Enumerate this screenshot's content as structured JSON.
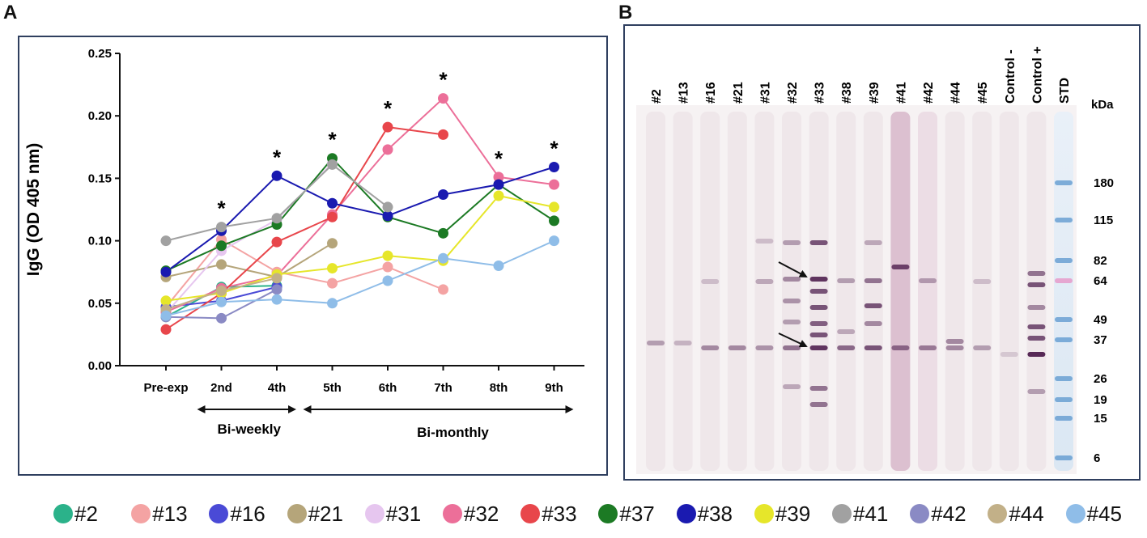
{
  "panels": {
    "a_letter": "A",
    "b_letter": "B"
  },
  "chart_data": [
    {
      "type": "line",
      "ylabel": "IgG (OD 405 nm)",
      "xlabel": "",
      "categories": [
        "Pre-exp",
        "2nd",
        "4th",
        "5th",
        "6th",
        "7th",
        "8th",
        "9th"
      ],
      "yticks": [
        "0.00",
        "0.05",
        "0.10",
        "0.15",
        "0.20",
        "0.25"
      ],
      "ylim": [
        0,
        0.25
      ],
      "significance_marks": [
        {
          "x": "2nd",
          "label": "*"
        },
        {
          "x": "4th",
          "label": "*"
        },
        {
          "x": "5th",
          "label": "*"
        },
        {
          "x": "6th",
          "label": "*"
        },
        {
          "x": "7th",
          "label": "*"
        },
        {
          "x": "8th",
          "label": "*"
        },
        {
          "x": "9th",
          "label": "*"
        }
      ],
      "annotations": {
        "bi_weekly": "Bi-weekly",
        "bi_monthly": "Bi-monthly"
      },
      "series": [
        {
          "name": "#2",
          "color": "#2bb28a",
          "values": [
            0.039,
            0.063,
            0.064,
            null,
            null,
            null,
            null,
            null
          ]
        },
        {
          "name": "#13",
          "color": "#f4a3a3",
          "values": [
            0.047,
            0.101,
            0.075,
            0.066,
            0.079,
            0.061,
            null,
            null
          ]
        },
        {
          "name": "#16",
          "color": "#4a4ad6",
          "values": [
            0.047,
            0.052,
            0.063,
            null,
            null,
            null,
            null,
            null
          ]
        },
        {
          "name": "#21",
          "color": "#b5a57a",
          "values": [
            0.071,
            0.081,
            0.071,
            0.098,
            null,
            null,
            null,
            null
          ]
        },
        {
          "name": "#31",
          "color": "#e6c6ef",
          "values": [
            0.042,
            0.092,
            0.117,
            0.162,
            null,
            null,
            null,
            null
          ]
        },
        {
          "name": "#32",
          "color": "#ec6f99",
          "values": [
            0.043,
            0.062,
            0.072,
            0.121,
            0.173,
            0.214,
            0.151,
            0.145
          ]
        },
        {
          "name": "#33",
          "color": "#e8464b",
          "values": [
            0.029,
            0.058,
            0.099,
            0.119,
            0.191,
            0.185,
            null,
            null
          ]
        },
        {
          "name": "#37",
          "color": "#1c7a24",
          "values": [
            0.076,
            0.096,
            0.113,
            0.166,
            0.119,
            0.106,
            0.145,
            0.116
          ]
        },
        {
          "name": "#38",
          "color": "#1a1ab0",
          "values": [
            0.075,
            0.108,
            0.152,
            0.13,
            0.12,
            0.137,
            0.145,
            0.159
          ]
        },
        {
          "name": "#39",
          "color": "#e6e62a",
          "values": [
            0.052,
            0.058,
            0.073,
            0.078,
            0.088,
            0.084,
            0.136,
            0.127
          ]
        },
        {
          "name": "#41",
          "color": "#a1a1a1",
          "values": [
            0.1,
            0.111,
            0.118,
            0.161,
            0.127,
            null,
            null,
            null
          ]
        },
        {
          "name": "#42",
          "color": "#8a8ac4",
          "values": [
            0.039,
            0.038,
            0.061,
            null,
            null,
            null,
            null,
            null
          ]
        },
        {
          "name": "#44",
          "color": "#c2b088",
          "values": [
            0.045,
            0.06,
            0.07,
            null,
            null,
            null,
            null,
            null
          ]
        },
        {
          "name": "#45",
          "color": "#8fbde8",
          "values": [
            0.04,
            0.051,
            0.053,
            0.05,
            0.068,
            0.086,
            0.08,
            0.1
          ]
        }
      ]
    },
    {
      "type": "western-blot",
      "lanes": [
        "#2",
        "#13",
        "#16",
        "#21",
        "#31",
        "#32",
        "#33",
        "#38",
        "#39",
        "#41",
        "#42",
        "#44",
        "#45",
        "Control -",
        "Control +",
        "STD"
      ],
      "unit_label": "kDa",
      "markers": [
        "180",
        "115",
        "82",
        "64",
        "49",
        "37",
        "26",
        "19",
        "15",
        "6"
      ]
    }
  ],
  "legend": {
    "items": [
      {
        "label": "#2",
        "color": "#2bb28a"
      },
      {
        "label": "#13",
        "color": "#f4a3a3"
      },
      {
        "label": "#16",
        "color": "#4a4ad6"
      },
      {
        "label": "#21",
        "color": "#b5a57a"
      },
      {
        "label": "#31",
        "color": "#e6c6ef"
      },
      {
        "label": "#32",
        "color": "#ec6f99"
      },
      {
        "label": "#33",
        "color": "#e8464b"
      },
      {
        "label": "#37",
        "color": "#1c7a24"
      },
      {
        "label": "#38",
        "color": "#1a1ab0"
      },
      {
        "label": "#39",
        "color": "#e6e62a"
      },
      {
        "label": "#41",
        "color": "#a1a1a1"
      },
      {
        "label": "#42",
        "color": "#8a8ac4"
      },
      {
        "label": "#44",
        "color": "#c2b088"
      },
      {
        "label": "#45",
        "color": "#8fbde8"
      }
    ]
  }
}
